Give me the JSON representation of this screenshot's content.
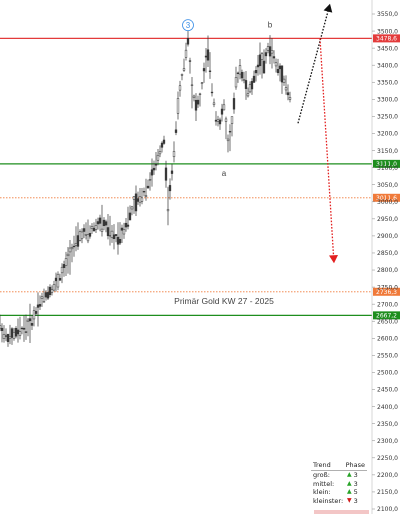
{
  "chart_data": {
    "type": "candlestick",
    "title": "Primär Gold KW 27 - 2025",
    "ylim": [
      2100,
      3550
    ],
    "yticks": [
      "3550,0",
      "3500,0",
      "3450,0",
      "3400,0",
      "3350,0",
      "3300,0",
      "3250,0",
      "3200,0",
      "3150,0",
      "3100,0",
      "3050,0",
      "3000,0",
      "2950,0",
      "2900,0",
      "2850,0",
      "2800,0",
      "2750,0",
      "2700,0",
      "2650,0",
      "2600,0",
      "2550,0",
      "2500,0",
      "2450,0",
      "2400,0",
      "2350,0",
      "2300,0",
      "2250,0",
      "2200,0",
      "2150,0",
      "2100,0"
    ],
    "price_path": [
      [
        0,
        2640
      ],
      [
        4,
        2612
      ],
      [
        8,
        2600
      ],
      [
        12,
        2605
      ],
      [
        16,
        2615
      ],
      [
        20,
        2622
      ],
      [
        24,
        2630
      ],
      [
        28,
        2635
      ],
      [
        32,
        2650
      ],
      [
        36,
        2680
      ],
      [
        40,
        2705
      ],
      [
        44,
        2720
      ],
      [
        48,
        2735
      ],
      [
        52,
        2745
      ],
      [
        56,
        2760
      ],
      [
        60,
        2780
      ],
      [
        64,
        2800
      ],
      [
        68,
        2830
      ],
      [
        72,
        2860
      ],
      [
        76,
        2880
      ],
      [
        80,
        2900
      ],
      [
        84,
        2910
      ],
      [
        88,
        2905
      ],
      [
        92,
        2920
      ],
      [
        96,
        2930
      ],
      [
        100,
        2940
      ],
      [
        104,
        2935
      ],
      [
        108,
        2920
      ],
      [
        112,
        2900
      ],
      [
        116,
        2895
      ],
      [
        120,
        2905
      ],
      [
        124,
        2920
      ],
      [
        128,
        2950
      ],
      [
        132,
        2975
      ],
      [
        136,
        3000
      ],
      [
        140,
        3010
      ],
      [
        144,
        3030
      ],
      [
        148,
        3050
      ],
      [
        152,
        3080
      ],
      [
        156,
        3110
      ],
      [
        160,
        3150
      ],
      [
        164,
        3180
      ],
      [
        168,
        2990
      ],
      [
        172,
        3080
      ],
      [
        176,
        3220
      ],
      [
        180,
        3330
      ],
      [
        184,
        3400
      ],
      [
        188,
        3480
      ],
      [
        192,
        3330
      ],
      [
        196,
        3280
      ],
      [
        200,
        3300
      ],
      [
        204,
        3380
      ],
      [
        208,
        3440
      ],
      [
        212,
        3330
      ],
      [
        216,
        3250
      ],
      [
        220,
        3230
      ],
      [
        224,
        3280
      ],
      [
        228,
        3170
      ],
      [
        232,
        3220
      ],
      [
        236,
        3350
      ],
      [
        240,
        3390
      ],
      [
        244,
        3360
      ],
      [
        248,
        3320
      ],
      [
        252,
        3340
      ],
      [
        256,
        3380
      ],
      [
        260,
        3420
      ],
      [
        264,
        3400
      ],
      [
        268,
        3450
      ],
      [
        272,
        3440
      ],
      [
        276,
        3400
      ],
      [
        280,
        3380
      ],
      [
        284,
        3360
      ],
      [
        288,
        3320
      ],
      [
        292,
        3290
      ]
    ],
    "horizontal_lines": [
      {
        "value": 3478.6,
        "label": "3478,6",
        "color": "#e33b3b",
        "style": "solid"
      },
      {
        "value": 3111.0,
        "label": "3111,0",
        "color": "#1e8e1e",
        "style": "solid"
      },
      {
        "value": 3011.6,
        "label": "3011,6",
        "color": "#f07a3a",
        "style": "dashed"
      },
      {
        "value": 2736.3,
        "label": "2736,3",
        "color": "#f07a3a",
        "style": "dashed"
      },
      {
        "value": 2667.2,
        "label": "2667,2",
        "color": "#1e8e1e",
        "style": "solid"
      }
    ],
    "wave_labels": [
      {
        "text": "3",
        "circled": true,
        "x": 188,
        "y": 3510
      },
      {
        "text": "b",
        "x": 270,
        "y": 3510
      },
      {
        "text": "a",
        "x": 224,
        "y": 3075
      }
    ],
    "projections": [
      {
        "color": "#111111",
        "from": [
          298,
          3230
        ],
        "to": [
          330,
          3580
        ]
      },
      {
        "color": "#e31f1f",
        "from": [
          320,
          3478
        ],
        "to": [
          334,
          2820
        ]
      }
    ]
  },
  "legend": {
    "col_trend": "Trend",
    "col_phase": "Phase",
    "rows": [
      {
        "name": "groß:",
        "dir": "up",
        "symbol": "▲",
        "phase": "3"
      },
      {
        "name": "mittel:",
        "dir": "up",
        "symbol": "▲",
        "phase": "3"
      },
      {
        "name": "klein:",
        "dir": "up",
        "symbol": "▲",
        "phase": "5"
      },
      {
        "name": "kleinster:",
        "dir": "down",
        "symbol": "▼",
        "phase": "3"
      }
    ]
  },
  "colors": {
    "axis_text": "#333333",
    "candle": "#333333",
    "grid": "#e6e6e6"
  }
}
